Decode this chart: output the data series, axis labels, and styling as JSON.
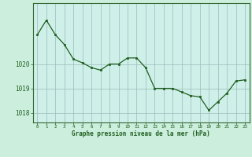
{
  "x": [
    0,
    1,
    2,
    3,
    4,
    5,
    6,
    7,
    8,
    9,
    10,
    11,
    12,
    13,
    14,
    15,
    16,
    17,
    18,
    19,
    20,
    21,
    22,
    23
  ],
  "y": [
    1021.2,
    1021.8,
    1021.2,
    1020.8,
    1020.2,
    1020.05,
    1019.85,
    1019.75,
    1020.0,
    1020.0,
    1020.25,
    1020.25,
    1019.85,
    1019.0,
    1019.0,
    1019.0,
    1018.85,
    1018.7,
    1018.65,
    1018.1,
    1018.45,
    1018.8,
    1019.3,
    1019.35
  ],
  "line_color": "#1f5e1f",
  "marker_color": "#1f5e1f",
  "bg_color": "#cceedd",
  "plot_bg_color": "#cff0e8",
  "grid_color": "#99bbbb",
  "xlabel": "Graphe pression niveau de la mer (hPa)",
  "xlabel_color": "#1f5e1f",
  "tick_color": "#1f5e1f",
  "ylim": [
    1017.6,
    1022.5
  ],
  "yticks": [
    1018,
    1019,
    1020
  ],
  "xticks": [
    0,
    1,
    2,
    3,
    4,
    5,
    6,
    7,
    8,
    9,
    10,
    11,
    12,
    13,
    14,
    15,
    16,
    17,
    18,
    19,
    20,
    21,
    22,
    23
  ],
  "figwidth": 3.2,
  "figheight": 2.0,
  "dpi": 100
}
